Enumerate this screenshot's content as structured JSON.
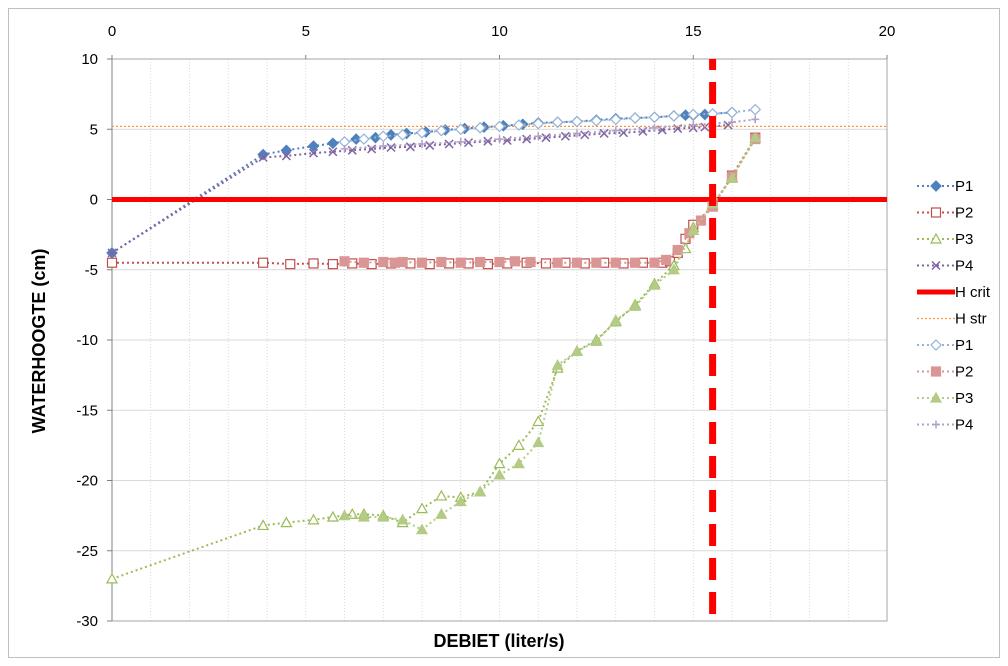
{
  "chart_data": {
    "type": "scatter",
    "title": "",
    "xlabel": "DEBIET (liter/s)",
    "ylabel": "WATERHOOGTE (cm)",
    "xlim": [
      0,
      20
    ],
    "ylim": [
      -30,
      10
    ],
    "x_ticks": [
      "0",
      "5",
      "10",
      "15",
      "20"
    ],
    "y_ticks": [
      "10",
      "5",
      "0",
      "-5",
      "-10",
      "-15",
      "-20",
      "-25",
      "-30"
    ],
    "x_axis_position": "top",
    "grid": true,
    "legend_position": "right",
    "series": [
      {
        "name": "P1",
        "color": "#4F81BD",
        "marker": "diamond-filled",
        "line": "dotted",
        "points": [
          [
            0,
            -3.8
          ],
          [
            3.9,
            3.2
          ],
          [
            4.5,
            3.5
          ],
          [
            5.2,
            3.8
          ],
          [
            5.7,
            4.0
          ],
          [
            6.3,
            4.3
          ],
          [
            6.8,
            4.4
          ],
          [
            7.2,
            4.6
          ],
          [
            7.6,
            4.7
          ],
          [
            8.1,
            4.8
          ],
          [
            8.6,
            4.95
          ],
          [
            9.1,
            5.05
          ],
          [
            9.6,
            5.15
          ],
          [
            10.1,
            5.25
          ],
          [
            10.6,
            5.35
          ],
          [
            11.0,
            5.45
          ],
          [
            11.5,
            5.5
          ],
          [
            12.0,
            5.55
          ],
          [
            12.5,
            5.65
          ],
          [
            13.0,
            5.75
          ],
          [
            13.5,
            5.8
          ],
          [
            14.0,
            5.85
          ],
          [
            14.5,
            5.95
          ],
          [
            14.8,
            6.0
          ],
          [
            15.0,
            6.0
          ],
          [
            15.3,
            6.05
          ],
          [
            16.0,
            6.2
          ]
        ]
      },
      {
        "name": "P2",
        "color": "#C0504D",
        "marker": "square-open",
        "line": "dotted",
        "points": [
          [
            0,
            -4.5
          ],
          [
            3.9,
            -4.5
          ],
          [
            4.6,
            -4.6
          ],
          [
            5.2,
            -4.55
          ],
          [
            5.7,
            -4.6
          ],
          [
            6.2,
            -4.55
          ],
          [
            6.7,
            -4.6
          ],
          [
            7.2,
            -4.55
          ],
          [
            7.7,
            -4.55
          ],
          [
            8.2,
            -4.6
          ],
          [
            8.7,
            -4.55
          ],
          [
            9.2,
            -4.55
          ],
          [
            9.7,
            -4.6
          ],
          [
            10.2,
            -4.55
          ],
          [
            10.7,
            -4.5
          ],
          [
            11.2,
            -4.55
          ],
          [
            11.7,
            -4.5
          ],
          [
            12.2,
            -4.55
          ],
          [
            12.7,
            -4.5
          ],
          [
            13.2,
            -4.55
          ],
          [
            13.7,
            -4.5
          ],
          [
            14.2,
            -4.5
          ],
          [
            14.4,
            -4.4
          ],
          [
            14.6,
            -3.8
          ],
          [
            14.8,
            -2.8
          ],
          [
            15.0,
            -1.8
          ],
          [
            15.5,
            -0.5
          ],
          [
            16.0,
            1.7
          ],
          [
            16.6,
            4.4
          ]
        ]
      },
      {
        "name": "P3",
        "color": "#9BBB59",
        "marker": "triangle-open",
        "line": "dotted",
        "points": [
          [
            0,
            -27.0
          ],
          [
            3.9,
            -23.2
          ],
          [
            4.5,
            -23.0
          ],
          [
            5.2,
            -22.8
          ],
          [
            5.7,
            -22.6
          ],
          [
            6.2,
            -22.4
          ],
          [
            6.5,
            -22.4
          ],
          [
            7.0,
            -22.5
          ],
          [
            7.5,
            -23.0
          ],
          [
            8.0,
            -22.0
          ],
          [
            8.5,
            -21.1
          ],
          [
            9.0,
            -21.2
          ],
          [
            9.5,
            -20.8
          ],
          [
            10.0,
            -18.8
          ],
          [
            10.5,
            -17.5
          ],
          [
            11.0,
            -15.8
          ],
          [
            11.5,
            -12.0
          ],
          [
            12.0,
            -10.8
          ],
          [
            12.5,
            -10.0
          ],
          [
            13.0,
            -8.7
          ],
          [
            13.5,
            -7.5
          ],
          [
            14.0,
            -6.0
          ],
          [
            14.5,
            -4.7
          ],
          [
            14.8,
            -3.5
          ],
          [
            15.0,
            -2.0
          ],
          [
            15.5,
            -0.4
          ],
          [
            16.0,
            1.6
          ],
          [
            16.6,
            4.4
          ]
        ]
      },
      {
        "name": "P4",
        "color": "#8064A2",
        "marker": "x",
        "line": "dotted",
        "points": [
          [
            0,
            -3.8
          ],
          [
            3.9,
            3.0
          ],
          [
            4.5,
            3.1
          ],
          [
            5.2,
            3.3
          ],
          [
            5.7,
            3.4
          ],
          [
            6.2,
            3.5
          ],
          [
            6.7,
            3.6
          ],
          [
            7.2,
            3.7
          ],
          [
            7.7,
            3.75
          ],
          [
            8.2,
            3.85
          ],
          [
            8.7,
            3.95
          ],
          [
            9.2,
            4.05
          ],
          [
            9.7,
            4.15
          ],
          [
            10.2,
            4.2
          ],
          [
            10.7,
            4.3
          ],
          [
            11.2,
            4.4
          ],
          [
            11.7,
            4.5
          ],
          [
            12.2,
            4.6
          ],
          [
            12.7,
            4.7
          ],
          [
            13.2,
            4.75
          ],
          [
            13.7,
            4.85
          ],
          [
            14.2,
            4.95
          ],
          [
            14.6,
            5.05
          ],
          [
            15.0,
            5.1
          ],
          [
            15.3,
            5.15
          ],
          [
            15.9,
            5.3
          ]
        ]
      },
      {
        "name": "H crit",
        "color": "#FF0000",
        "marker": "none",
        "line": "solid-thick",
        "points": [
          [
            0,
            0
          ],
          [
            20,
            0
          ]
        ]
      },
      {
        "name": "H str",
        "color": "#F79646",
        "marker": "none",
        "line": "dotted-thin",
        "points": [
          [
            0,
            5.2
          ],
          [
            20,
            5.2
          ]
        ]
      },
      {
        "name": "P1",
        "color": "#95B3D7",
        "marker": "diamond-open",
        "line": "dotted",
        "points": [
          [
            6.0,
            4.1
          ],
          [
            6.5,
            4.3
          ],
          [
            7.0,
            4.5
          ],
          [
            7.5,
            4.6
          ],
          [
            8.0,
            4.75
          ],
          [
            8.5,
            4.9
          ],
          [
            9.0,
            5.0
          ],
          [
            9.5,
            5.1
          ],
          [
            10.0,
            5.2
          ],
          [
            10.5,
            5.3
          ],
          [
            11.0,
            5.4
          ],
          [
            11.5,
            5.5
          ],
          [
            12.0,
            5.55
          ],
          [
            12.5,
            5.6
          ],
          [
            13.0,
            5.7
          ],
          [
            13.5,
            5.8
          ],
          [
            14.0,
            5.85
          ],
          [
            14.5,
            5.95
          ],
          [
            15.0,
            6.05
          ],
          [
            15.5,
            6.1
          ],
          [
            16.0,
            6.2
          ],
          [
            16.6,
            6.4
          ]
        ]
      },
      {
        "name": "P2",
        "color": "#DA9694",
        "marker": "square-filled",
        "line": "dotted",
        "points": [
          [
            6.0,
            -4.4
          ],
          [
            6.5,
            -4.5
          ],
          [
            7.0,
            -4.45
          ],
          [
            7.3,
            -4.5
          ],
          [
            7.5,
            -4.45
          ],
          [
            8.0,
            -4.5
          ],
          [
            8.5,
            -4.45
          ],
          [
            9.0,
            -4.5
          ],
          [
            9.5,
            -4.45
          ],
          [
            10.0,
            -4.45
          ],
          [
            10.4,
            -4.4
          ],
          [
            10.8,
            -4.45
          ],
          [
            11.5,
            -4.5
          ],
          [
            12.0,
            -4.5
          ],
          [
            12.5,
            -4.5
          ],
          [
            13.0,
            -4.5
          ],
          [
            13.5,
            -4.5
          ],
          [
            14.0,
            -4.5
          ],
          [
            14.3,
            -4.3
          ],
          [
            14.6,
            -3.6
          ],
          [
            14.9,
            -2.4
          ],
          [
            15.2,
            -1.5
          ],
          [
            15.5,
            -0.5
          ],
          [
            16.0,
            1.6
          ],
          [
            16.6,
            4.3
          ]
        ]
      },
      {
        "name": "P3",
        "color": "#B3CB84",
        "marker": "triangle-filled",
        "line": "dotted",
        "points": [
          [
            6.0,
            -22.5
          ],
          [
            6.5,
            -22.6
          ],
          [
            7.0,
            -22.6
          ],
          [
            7.5,
            -22.8
          ],
          [
            8.0,
            -23.5
          ],
          [
            8.5,
            -22.4
          ],
          [
            9.0,
            -21.5
          ],
          [
            9.5,
            -20.8
          ],
          [
            10.0,
            -19.6
          ],
          [
            10.5,
            -18.8
          ],
          [
            11.0,
            -17.3
          ],
          [
            11.5,
            -11.8
          ],
          [
            12.0,
            -10.8
          ],
          [
            12.5,
            -10.1
          ],
          [
            13.0,
            -8.6
          ],
          [
            13.5,
            -7.6
          ],
          [
            14.0,
            -6.1
          ],
          [
            14.5,
            -5.0
          ],
          [
            15.0,
            -2.2
          ],
          [
            15.5,
            -0.3
          ],
          [
            16.0,
            1.5
          ],
          [
            16.6,
            4.4
          ]
        ]
      },
      {
        "name": "P4",
        "color": "#B2A1C7",
        "marker": "plus",
        "line": "dotted",
        "points": [
          [
            6.0,
            3.6
          ],
          [
            7.0,
            3.8
          ],
          [
            8.0,
            3.95
          ],
          [
            9.0,
            4.1
          ],
          [
            10.0,
            4.3
          ],
          [
            11.0,
            4.5
          ],
          [
            12.0,
            4.7
          ],
          [
            13.0,
            4.9
          ],
          [
            14.0,
            5.1
          ],
          [
            15.0,
            5.3
          ],
          [
            16.0,
            5.5
          ],
          [
            16.6,
            5.7
          ]
        ]
      },
      {
        "name": "",
        "color": "#FF0000",
        "marker": "none",
        "line": "dashed-thick",
        "points": [
          [
            15.5,
            -29.5
          ],
          [
            15.5,
            10
          ]
        ]
      }
    ]
  }
}
